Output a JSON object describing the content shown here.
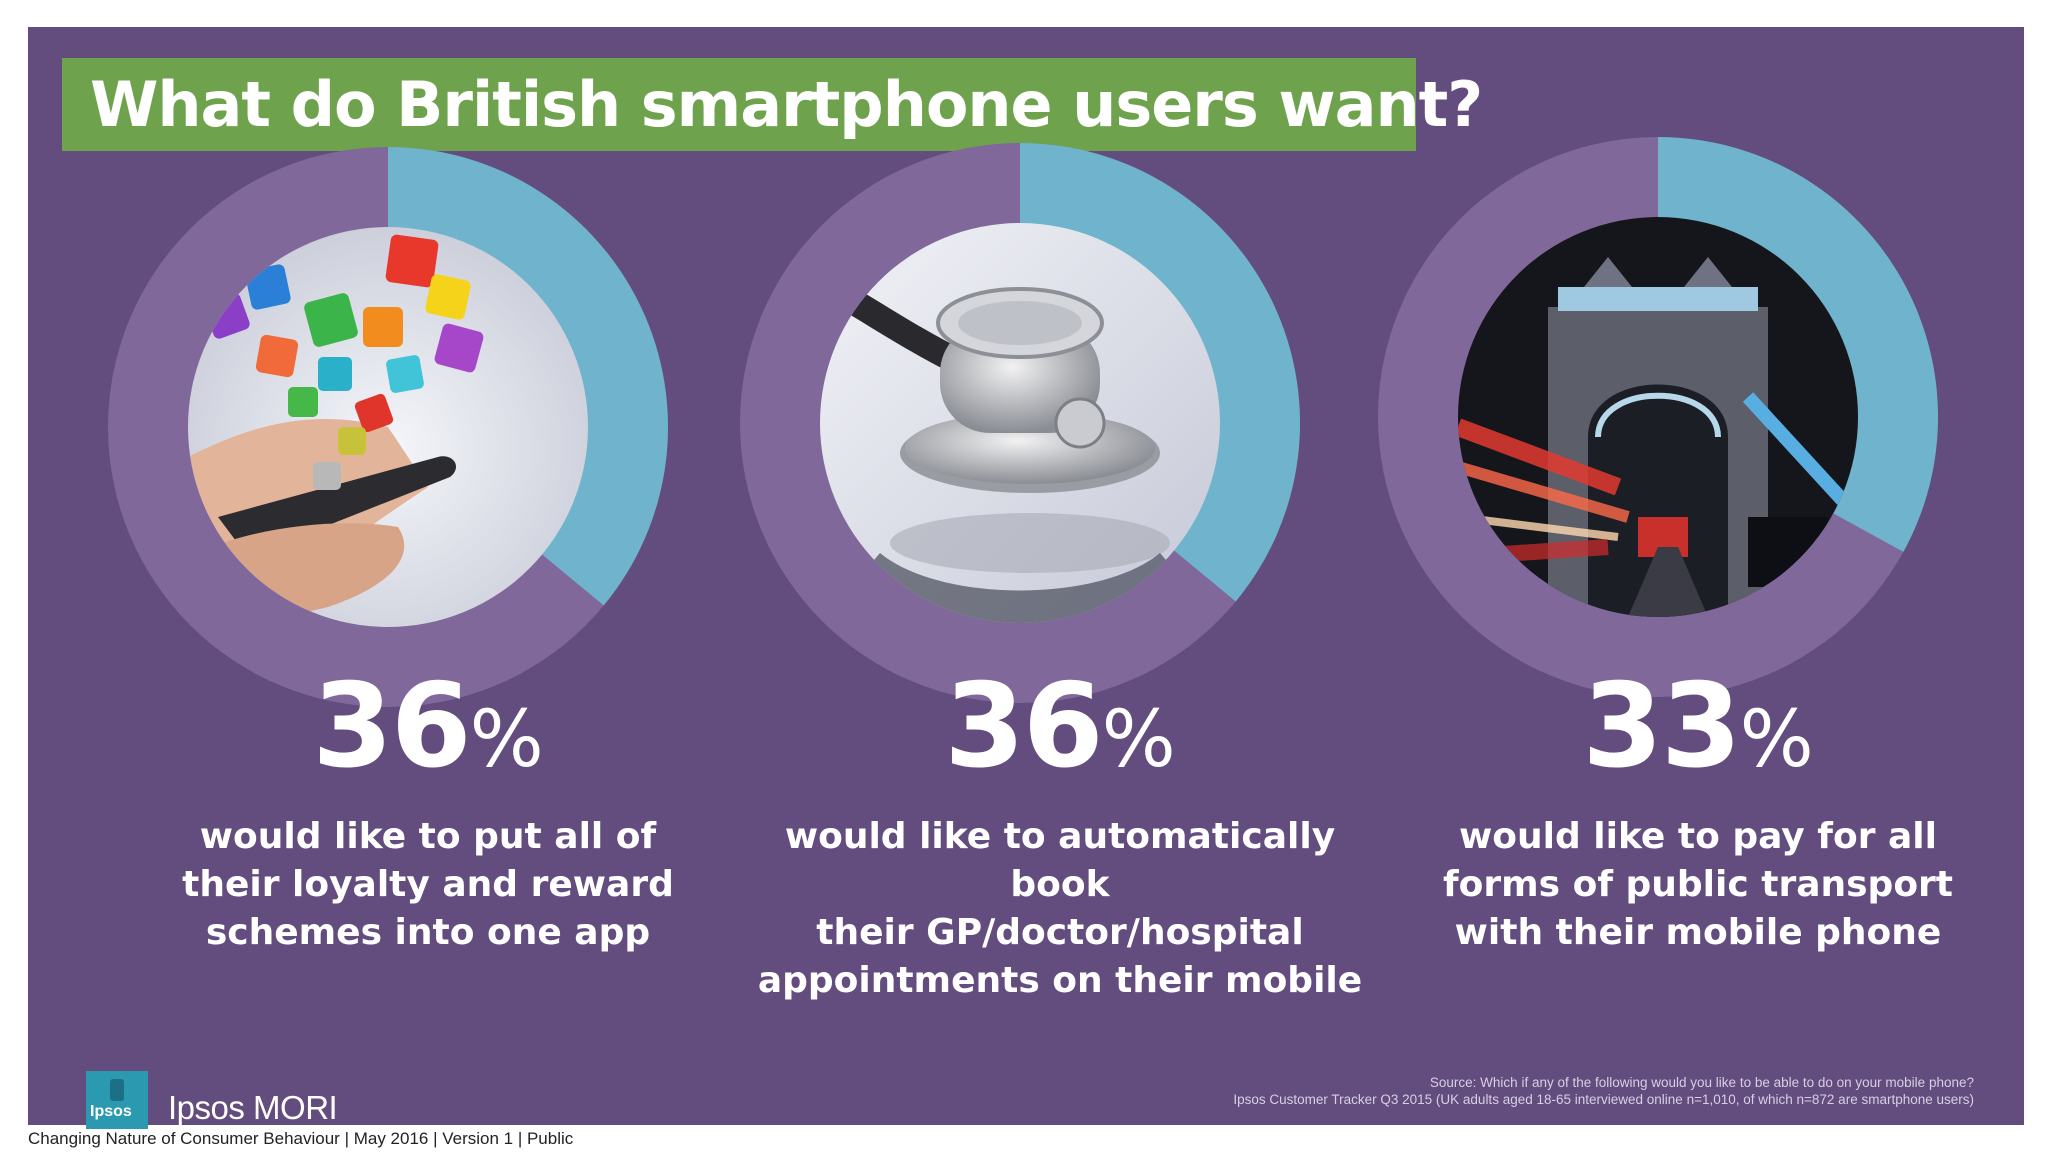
{
  "header": {
    "title": "What do British smartphone users want?"
  },
  "chart_data": [
    {
      "type": "pie",
      "values": [
        36,
        64
      ],
      "value_label": "36",
      "unit": "%",
      "description": "would like to put all of their loyalty and reward schemes into one app",
      "description_lines": [
        "would like to put all of",
        "their loyalty and reward",
        "schemes into one app"
      ],
      "colors": {
        "share": "#6fb3cc",
        "rest": "#80689a"
      }
    },
    {
      "type": "pie",
      "values": [
        36,
        64
      ],
      "value_label": "36",
      "unit": "%",
      "description": "would like to automatically book their GP/doctor/hospital appointments on their mobile",
      "description_lines": [
        "would like to automatically book",
        "their GP/doctor/hospital",
        "appointments on their mobile"
      ],
      "colors": {
        "share": "#6fb3cc",
        "rest": "#80689a"
      }
    },
    {
      "type": "pie",
      "values": [
        33,
        67
      ],
      "value_label": "33",
      "unit": "%",
      "description": "would like to pay for all forms of public transport with their mobile phone",
      "description_lines": [
        "would like to pay for all",
        "forms of public transport",
        "with their mobile phone"
      ],
      "colors": {
        "share": "#6fb3cc",
        "rest": "#80689a"
      }
    }
  ],
  "logo": {
    "mark_text": "Ipsos",
    "brand": "Ipsos MORI"
  },
  "source": {
    "line1": "Source: Which if any of the following would you like to be able to do on your mobile phone?",
    "line2": "Ipsos Customer Tracker Q3 2015 (UK adults aged  18-65 interviewed online n=1,010, of which n=872 are smartphone users)"
  },
  "footer": {
    "text": "Changing Nature of Consumer Behaviour |  May 2016 |  Version 1  |  Public"
  },
  "colors": {
    "background": "#634c7e",
    "title_box": "#6fa24d",
    "donut_share": "#6fb3cc",
    "donut_rest": "#80689a"
  }
}
